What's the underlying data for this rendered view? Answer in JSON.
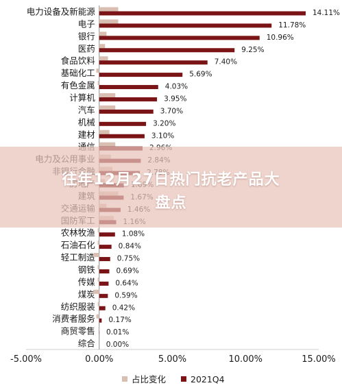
{
  "overlay": {
    "title_line1": "往年12月27日热门抗老产品大",
    "title_line2": "盘点"
  },
  "chart_data": {
    "type": "bar",
    "orientation": "horizontal",
    "categories": [
      "电力设备及新能源",
      "电子",
      "银行",
      "医药",
      "食品饮料",
      "基础化工",
      "有色金属",
      "计算机",
      "汽车",
      "机械",
      "建材",
      "通信",
      "电力及公用事业",
      "非银行金融",
      "房地产",
      "建筑",
      "交通运输",
      "国防军工",
      "农林牧渔",
      "石油石化",
      "轻工制造",
      "钢铁",
      "传媒",
      "煤炭",
      "纺织服装",
      "消费者服务",
      "商贸零售",
      "综合"
    ],
    "series": [
      {
        "name": "占比变化",
        "color": "#d9bfb1",
        "values": [
          1.3,
          1.3,
          0.5,
          0.4,
          0.6,
          -0.2,
          -0.1,
          1.1,
          1.1,
          0.0,
          0.7,
          1.1,
          0.8,
          0.9,
          0.4,
          1.3,
          0.5,
          1.0,
          -0.1,
          -0.1,
          -0.4,
          -0.1,
          -0.1,
          -0.4,
          -0.1,
          -0.2,
          -0.05,
          0.0
        ]
      },
      {
        "name": "2021Q4",
        "color": "#7b1416",
        "values": [
          14.11,
          11.78,
          10.96,
          9.25,
          7.4,
          5.69,
          4.03,
          3.95,
          3.7,
          3.2,
          3.1,
          2.96,
          2.84,
          2.78,
          1.69,
          1.67,
          1.46,
          1.16,
          1.08,
          0.84,
          0.75,
          0.69,
          0.64,
          0.59,
          0.42,
          0.17,
          0.01,
          0.0
        ]
      }
    ],
    "data_labels": [
      "14.11%",
      "11.78%",
      "10.96%",
      "9.25%",
      "7.40%",
      "5.69%",
      "4.03%",
      "3.95%",
      "3.70%",
      "3.20%",
      "3.10%",
      "2.96%",
      "2.84%",
      "2.78%",
      "1.69%",
      "1.67%",
      "1.46%",
      "1.16%",
      "1.08%",
      "0.84%",
      "0.75%",
      "0.69%",
      "0.64%",
      "0.59%",
      "0.42%",
      "0.17%",
      "0.01%",
      "0.00%"
    ],
    "xlim": [
      -5,
      15
    ],
    "xticks": [
      -5,
      0,
      5,
      10,
      15
    ],
    "xtick_labels": [
      "-5.00%",
      "0.00%",
      "5.00%",
      "10.00%",
      "15.00%"
    ],
    "grid": false,
    "legend": "bottom"
  }
}
